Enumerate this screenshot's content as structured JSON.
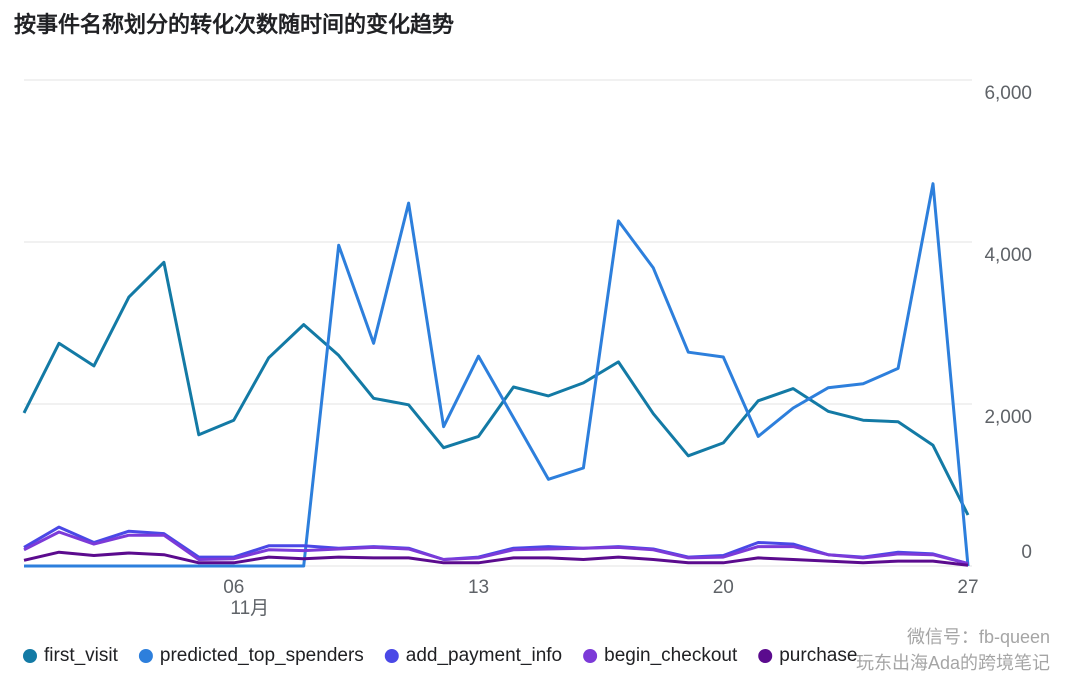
{
  "chart_data": {
    "type": "line",
    "title": "按事件名称划分的转化次数随时间的变化趋势",
    "categories": [
      null,
      null,
      null,
      null,
      null,
      null,
      "06",
      null,
      null,
      null,
      null,
      null,
      null,
      "13",
      null,
      null,
      null,
      null,
      null,
      null,
      "20",
      null,
      null,
      null,
      null,
      null,
      null,
      "27"
    ],
    "x_sublabel": "11月",
    "series": [
      {
        "name": "first_visit",
        "color": "#137aa5",
        "values": [
          1890,
          2750,
          2470,
          3320,
          3750,
          1620,
          1800,
          2570,
          2980,
          2600,
          2070,
          1990,
          1460,
          1600,
          2210,
          2100,
          2260,
          2520,
          1880,
          1360,
          1520,
          2040,
          2190,
          1910,
          1800,
          1780,
          1490,
          630
        ]
      },
      {
        "name": "predicted_top_spenders",
        "color": "#2d7fdc",
        "values": [
          0,
          0,
          0,
          0,
          0,
          0,
          0,
          0,
          0,
          3960,
          2750,
          4480,
          1720,
          2590,
          1830,
          1070,
          1210,
          4260,
          3680,
          2640,
          2580,
          1600,
          1950,
          2200,
          2250,
          2440,
          4720,
          0
        ]
      },
      {
        "name": "add_payment_info",
        "color": "#4a48e6",
        "values": [
          230,
          480,
          290,
          430,
          400,
          110,
          110,
          250,
          250,
          220,
          240,
          220,
          80,
          110,
          220,
          240,
          220,
          240,
          210,
          110,
          130,
          290,
          270,
          140,
          110,
          170,
          150,
          30
        ]
      },
      {
        "name": "begin_checkout",
        "color": "#7c3ad8",
        "values": [
          200,
          420,
          270,
          380,
          380,
          80,
          90,
          200,
          190,
          210,
          230,
          210,
          80,
          100,
          200,
          210,
          220,
          230,
          200,
          100,
          110,
          240,
          240,
          140,
          100,
          150,
          140,
          30
        ]
      },
      {
        "name": "purchase",
        "color": "#5b0b8e",
        "values": [
          70,
          170,
          130,
          160,
          140,
          40,
          40,
          110,
          90,
          110,
          100,
          100,
          40,
          40,
          100,
          100,
          80,
          110,
          80,
          40,
          40,
          100,
          80,
          60,
          40,
          60,
          60,
          10
        ]
      }
    ],
    "ylim": [
      0,
      6000
    ],
    "yticks": [
      0,
      {
        "value": 2000,
        "label": "2,000"
      },
      {
        "value": 4000,
        "label": "4,000"
      },
      {
        "value": 6000,
        "label": "6,000"
      }
    ],
    "grid": true,
    "legend": "bottom",
    "watermark": [
      "微信号：fb-queen",
      "玩东出海Ada的跨境笔记"
    ]
  }
}
